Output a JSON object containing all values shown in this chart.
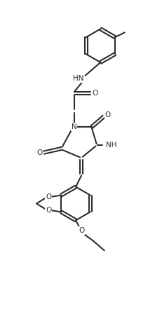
{
  "background_color": "#ffffff",
  "line_color": "#2d2d2d",
  "line_width": 1.5,
  "fig_width": 2.32,
  "fig_height": 4.58,
  "dpi": 100,
  "xlim": [
    0,
    10
  ],
  "ylim": [
    0,
    20
  ]
}
